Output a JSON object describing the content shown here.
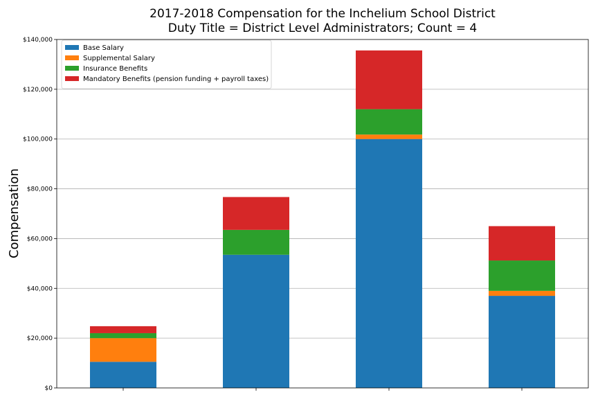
{
  "chart_data": {
    "type": "bar",
    "stacked": true,
    "title": "2017-2018 Compensation for the Inchelium School District",
    "subtitle": "Duty Title = District Level Administrators; Count = 4",
    "xlabel": "",
    "ylabel": "Compensation",
    "ylim": [
      0,
      140000
    ],
    "yticks": [
      {
        "value": 0,
        "label": "$0"
      },
      {
        "value": 20000,
        "label": "$20,000"
      },
      {
        "value": 40000,
        "label": "$40,000"
      },
      {
        "value": 60000,
        "label": "$60,000"
      },
      {
        "value": 80000,
        "label": "$80,000"
      },
      {
        "value": 100000,
        "label": "$100,000"
      },
      {
        "value": 120000,
        "label": "$120,000"
      },
      {
        "value": 140000,
        "label": "$140,000"
      }
    ],
    "grid": "horizontal",
    "legend_position": "top-left",
    "categories": [
      "",
      "",
      "",
      ""
    ],
    "series": [
      {
        "name": "Base Salary",
        "color": "#1f77b4",
        "values": [
          10500,
          53500,
          100000,
          37000
        ]
      },
      {
        "name": "Supplemental Salary",
        "color": "#ff7f0e",
        "values": [
          9500,
          0,
          1800,
          2000
        ]
      },
      {
        "name": "Insurance Benefits",
        "color": "#2ca02c",
        "values": [
          2000,
          10000,
          10200,
          12200
        ]
      },
      {
        "name": "Mandatory Benefits (pension funding + payroll taxes)",
        "color": "#d62728",
        "values": [
          2800,
          13200,
          23600,
          13800
        ]
      }
    ]
  }
}
